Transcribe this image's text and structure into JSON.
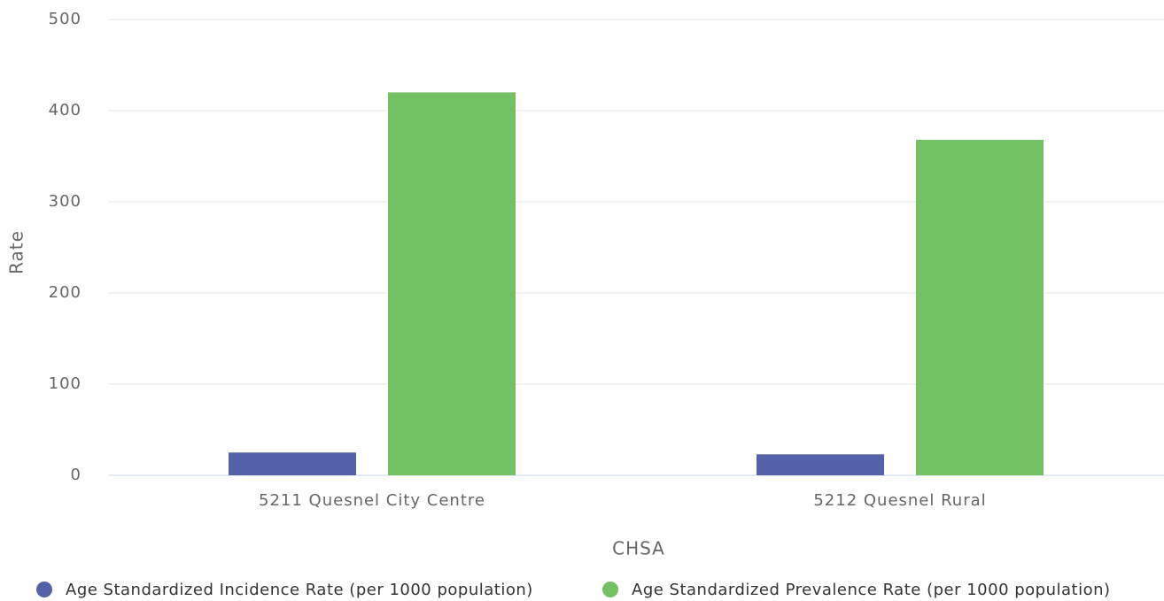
{
  "chart_data": {
    "type": "bar",
    "categories": [
      "5211 Quesnel City Centre",
      "5212 Quesnel Rural"
    ],
    "series": [
      {
        "name": "Age Standardized Incidence Rate (per 1000 population)",
        "color": "#5361a8",
        "values": [
          25,
          23
        ]
      },
      {
        "name": "Age Standardized Prevalence Rate (per 1000 population)",
        "color": "#74c164",
        "values": [
          420,
          368
        ]
      }
    ],
    "y_label": "Rate",
    "x_label": "CHSA",
    "ylim": [
      0,
      500
    ],
    "yticks": [
      0,
      100,
      200,
      300,
      400,
      500
    ],
    "grid": true,
    "legend": "bottom"
  }
}
